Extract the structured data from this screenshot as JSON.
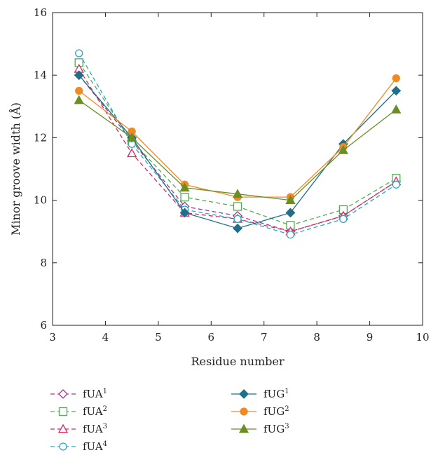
{
  "chart_data": {
    "type": "line",
    "xlabel": "Residue number",
    "ylabel": "Minor groove width (Å)",
    "xlim": [
      3,
      10
    ],
    "ylim": [
      6,
      16
    ],
    "x_ticks": [
      3,
      4,
      5,
      6,
      7,
      8,
      9,
      10
    ],
    "y_ticks": [
      6,
      8,
      10,
      12,
      14,
      16
    ],
    "grid": false,
    "legend_position": "bottom",
    "x": [
      3.5,
      4.5,
      5.5,
      6.5,
      7.5,
      8.5,
      9.5
    ],
    "series": [
      {
        "name": "fUA",
        "sup": "1",
        "color": "#9b3a8f",
        "marker": "diamond-open",
        "dashed": true,
        "values": [
          14.0,
          11.9,
          9.8,
          9.5,
          9.0,
          9.5,
          10.6
        ]
      },
      {
        "name": "fUA",
        "sup": "2",
        "color": "#4caf50",
        "marker": "square-open",
        "dashed": true,
        "values": [
          14.4,
          11.9,
          10.1,
          9.8,
          9.2,
          9.7,
          10.7
        ]
      },
      {
        "name": "fUA",
        "sup": "3",
        "color": "#e0245e",
        "marker": "triangle-open",
        "dashed": true,
        "values": [
          14.2,
          11.5,
          9.6,
          9.4,
          9.0,
          9.5,
          10.6
        ]
      },
      {
        "name": "fUA",
        "sup": "4",
        "color": "#2aa6c4",
        "marker": "circle-open",
        "dashed": true,
        "values": [
          14.7,
          11.8,
          9.7,
          9.4,
          8.9,
          9.4,
          10.5
        ]
      },
      {
        "name": "fUG",
        "sup": "1",
        "color": "#1f6f8b",
        "marker": "diamond-filled",
        "dashed": false,
        "values": [
          14.0,
          12.0,
          9.6,
          9.1,
          9.6,
          11.8,
          13.5
        ]
      },
      {
        "name": "fUG",
        "sup": "2",
        "color": "#f08a24",
        "marker": "circle-filled",
        "dashed": false,
        "values": [
          13.5,
          12.2,
          10.5,
          10.1,
          10.1,
          11.7,
          13.9
        ]
      },
      {
        "name": "fUG",
        "sup": "3",
        "color": "#6b8e23",
        "marker": "triangle-filled",
        "dashed": false,
        "values": [
          13.2,
          12.0,
          10.4,
          10.2,
          10.0,
          11.6,
          12.9
        ]
      }
    ]
  }
}
